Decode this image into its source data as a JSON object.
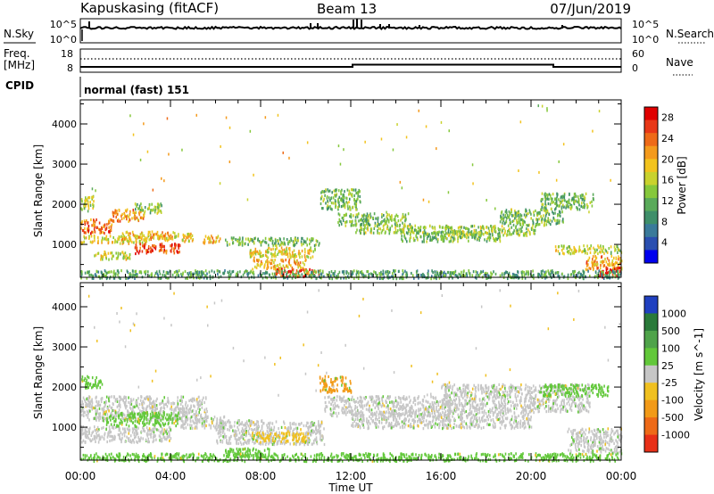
{
  "header": {
    "station": "Kapuskasing (fitACF)",
    "beam": "Beam 13",
    "date": "07/Jun/2019"
  },
  "noise_panel": {
    "left_label": "N.Sky",
    "right_label": "N.Search",
    "left_ticks": [
      "10^5",
      "10^0"
    ],
    "right_ticks": [
      "10^5",
      "10^0"
    ]
  },
  "freq_panel": {
    "left_label_1": "Freq.",
    "left_label_2": "[MHz]",
    "left_ticks": [
      "18",
      "8"
    ],
    "right_label": "Nave",
    "right_ticks": [
      "60",
      "0"
    ]
  },
  "cpid": {
    "label": "CPID",
    "value": "normal (fast) 151"
  },
  "xaxis": {
    "ticks": [
      "00:00",
      "04:00",
      "08:00",
      "12:00",
      "16:00",
      "20:00",
      "00:00"
    ],
    "label": "Time UT"
  },
  "chart_data": [
    {
      "type": "heatmap",
      "title": "",
      "xlabel": "Time UT",
      "ylabel": "Slant Range [km]",
      "x_ticks": [
        "00:00",
        "04:00",
        "08:00",
        "12:00",
        "16:00",
        "20:00",
        "00:00"
      ],
      "xlim_hours": [
        0,
        24
      ],
      "y_ticks": [
        1000,
        2000,
        3000,
        4000
      ],
      "ylim": [
        180,
        4600
      ],
      "colorbar": {
        "label": "Power [dB]",
        "ticks": [
          4,
          8,
          12,
          16,
          20,
          24,
          28
        ],
        "colors": [
          "#0000ee",
          "#2a4fb0",
          "#3a7a9a",
          "#3f8f6a",
          "#5aaa5a",
          "#86c83c",
          "#c9d22e",
          "#f2c31e",
          "#f49a1c",
          "#ee6a18",
          "#e83818",
          "#e00000"
        ]
      },
      "regions": [
        {
          "t0": 0.0,
          "t1": 0.6,
          "r0": 1900,
          "r1": 2250,
          "level": 16
        },
        {
          "t0": 0.0,
          "t1": 1.4,
          "r0": 1300,
          "r1": 1650,
          "level": 24
        },
        {
          "t0": 0.0,
          "t1": 3.0,
          "r0": 1050,
          "r1": 1250,
          "level": 18
        },
        {
          "t0": 1.4,
          "t1": 2.8,
          "r0": 1600,
          "r1": 1900,
          "level": 22
        },
        {
          "t0": 2.4,
          "t1": 3.6,
          "r0": 1800,
          "r1": 2050,
          "level": 14
        },
        {
          "t0": 1.8,
          "t1": 4.2,
          "r0": 1150,
          "r1": 1350,
          "level": 20
        },
        {
          "t0": 2.4,
          "t1": 4.4,
          "r0": 800,
          "r1": 1050,
          "level": 27
        },
        {
          "t0": 0.6,
          "t1": 2.2,
          "r0": 650,
          "r1": 850,
          "level": 16
        },
        {
          "t0": 3.6,
          "t1": 5.0,
          "r0": 1100,
          "r1": 1300,
          "level": 18
        },
        {
          "t0": 5.4,
          "t1": 6.2,
          "r0": 1050,
          "r1": 1250,
          "level": 20
        },
        {
          "t0": 6.4,
          "t1": 10.6,
          "r0": 1000,
          "r1": 1200,
          "level": 12
        },
        {
          "t0": 7.4,
          "t1": 10.4,
          "r0": 700,
          "r1": 950,
          "level": 18
        },
        {
          "t0": 7.6,
          "t1": 10.0,
          "r0": 400,
          "r1": 650,
          "level": 20
        },
        {
          "t0": 8.6,
          "t1": 10.6,
          "r0": 220,
          "r1": 420,
          "level": 26
        },
        {
          "t0": 10.6,
          "t1": 12.4,
          "r0": 1900,
          "r1": 2400,
          "level": 12
        },
        {
          "t0": 11.4,
          "t1": 14.6,
          "r0": 1500,
          "r1": 1800,
          "level": 12
        },
        {
          "t0": 12.2,
          "t1": 16.4,
          "r0": 1300,
          "r1": 1500,
          "level": 14
        },
        {
          "t0": 14.2,
          "t1": 18.6,
          "r0": 1100,
          "r1": 1350,
          "level": 12
        },
        {
          "t0": 16.2,
          "t1": 20.2,
          "r0": 1250,
          "r1": 1500,
          "level": 14
        },
        {
          "t0": 18.6,
          "t1": 21.4,
          "r0": 1500,
          "r1": 1900,
          "level": 12
        },
        {
          "t0": 20.4,
          "t1": 22.8,
          "r0": 1900,
          "r1": 2300,
          "level": 12
        },
        {
          "t0": 21.0,
          "t1": 24.0,
          "r0": 800,
          "r1": 1000,
          "level": 16
        },
        {
          "t0": 22.4,
          "t1": 24.0,
          "r0": 400,
          "r1": 750,
          "level": 22
        },
        {
          "t0": 23.0,
          "t1": 24.0,
          "r0": 200,
          "r1": 450,
          "level": 28
        },
        {
          "t0": 0.0,
          "t1": 24.0,
          "r0": 180,
          "r1": 380,
          "level": 10
        }
      ]
    },
    {
      "type": "heatmap",
      "title": "",
      "xlabel": "Time UT",
      "ylabel": "Slant Range [km]",
      "x_ticks": [
        "00:00",
        "04:00",
        "08:00",
        "12:00",
        "16:00",
        "20:00",
        "00:00"
      ],
      "xlim_hours": [
        0,
        24
      ],
      "y_ticks": [
        1000,
        2000,
        3000,
        4000
      ],
      "ylim": [
        180,
        4600
      ],
      "colorbar": {
        "label": "Velocity [m s^-1]",
        "ticks": [
          1000,
          500,
          100,
          25,
          -25,
          -100,
          -500,
          -1000
        ],
        "colors": [
          "#2040c0",
          "#2a7a3a",
          "#4fa34a",
          "#62c83a",
          "#c6c6c6",
          "#f0c020",
          "#f29a18",
          "#ee6a18",
          "#e83018"
        ]
      },
      "regions": [
        {
          "t0": 0.0,
          "t1": 5.6,
          "r0": 1200,
          "r1": 1800,
          "level": 0
        },
        {
          "t0": 0.0,
          "t1": 4.0,
          "r0": 650,
          "r1": 1050,
          "level": 0
        },
        {
          "t0": 1.0,
          "t1": 4.4,
          "r0": 1050,
          "r1": 1400,
          "level": 100
        },
        {
          "t0": 0.0,
          "t1": 1.0,
          "r0": 2000,
          "r1": 2300,
          "level": 100
        },
        {
          "t0": 4.4,
          "t1": 6.4,
          "r0": 1000,
          "r1": 1300,
          "level": 0
        },
        {
          "t0": 6.0,
          "t1": 10.8,
          "r0": 600,
          "r1": 1200,
          "level": 0
        },
        {
          "t0": 7.6,
          "t1": 10.0,
          "r0": 650,
          "r1": 900,
          "level": -100
        },
        {
          "t0": 6.4,
          "t1": 8.4,
          "r0": 280,
          "r1": 500,
          "level": 100
        },
        {
          "t0": 10.6,
          "t1": 12.0,
          "r0": 1900,
          "r1": 2300,
          "level": -500
        },
        {
          "t0": 10.8,
          "t1": 16.4,
          "r0": 1300,
          "r1": 1800,
          "level": 0
        },
        {
          "t0": 12.0,
          "t1": 20.0,
          "r0": 1000,
          "r1": 1400,
          "level": 0
        },
        {
          "t0": 16.0,
          "t1": 22.6,
          "r0": 1400,
          "r1": 2100,
          "level": 0
        },
        {
          "t0": 20.4,
          "t1": 23.4,
          "r0": 1800,
          "r1": 2100,
          "level": 100
        },
        {
          "t0": 21.6,
          "t1": 24.0,
          "r0": 400,
          "r1": 1000,
          "level": 0
        },
        {
          "t0": 0.0,
          "t1": 24.0,
          "r0": 180,
          "r1": 380,
          "level": 25
        }
      ]
    }
  ]
}
